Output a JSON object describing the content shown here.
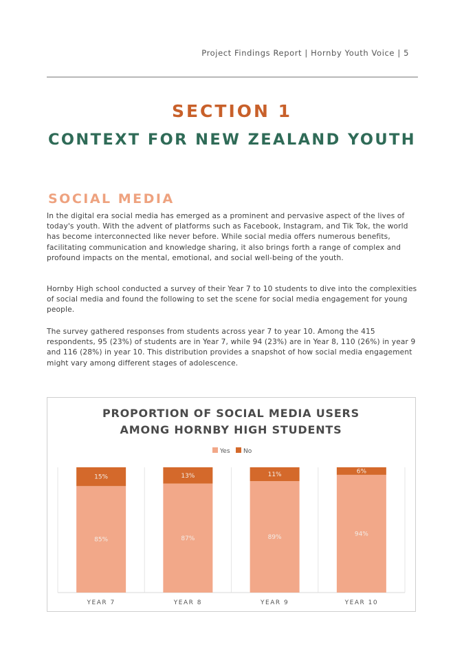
{
  "header": {
    "text": "Project Findings Report | Hornby Youth Voice | 5"
  },
  "section": {
    "number_label": "SECTION 1",
    "title": "CONTEXT FOR NEW ZEALAND YOUTH"
  },
  "social_media": {
    "heading": "SOCIAL MEDIA",
    "paragraphs": [
      "In the digital era social media has emerged as a prominent and pervasive aspect of the lives of today's youth. With the advent of platforms such as Facebook, Instagram, and Tik Tok, the world has become interconnected like never before. While social media offers numerous benefits, facilitating communication and knowledge sharing, it also brings forth a range of complex and profound impacts on the mental, emotional, and social well-being of the youth.",
      "Hornby High school conducted a survey of their Year 7 to 10 students to dive into the complexities of social media and found the following to set the scene for social media engagement for young people.",
      "The survey gathered responses from students across year 7 to year 10. Among the 415 respondents, 95 (23%) of students are in Year 7, while 94 (23%) are in Year 8, 110 (26%) in year 9 and 116 (28%) in year 10. This distribution provides a snapshot of how social media engagement might vary among different stages of adolescence."
    ]
  },
  "chart_data": {
    "type": "bar",
    "stacked": true,
    "title_lines": [
      "PROPORTION OF SOCIAL MEDIA USERS",
      "AMONG HORNBY HIGH STUDENTS"
    ],
    "categories": [
      "YEAR 7",
      "YEAR 8",
      "YEAR 9",
      "YEAR 10"
    ],
    "series": [
      {
        "name": "Yes",
        "values": [
          85,
          87,
          89,
          94
        ],
        "labels": [
          "85%",
          "87%",
          "89%",
          "94%"
        ],
        "color": "#f2a889"
      },
      {
        "name": "No",
        "values": [
          15,
          13,
          11,
          6
        ],
        "labels": [
          "15%",
          "13%",
          "11%",
          "6%"
        ],
        "color": "#d4692b"
      }
    ],
    "legend": "top",
    "ylim": [
      0,
      100
    ],
    "grid": false
  }
}
